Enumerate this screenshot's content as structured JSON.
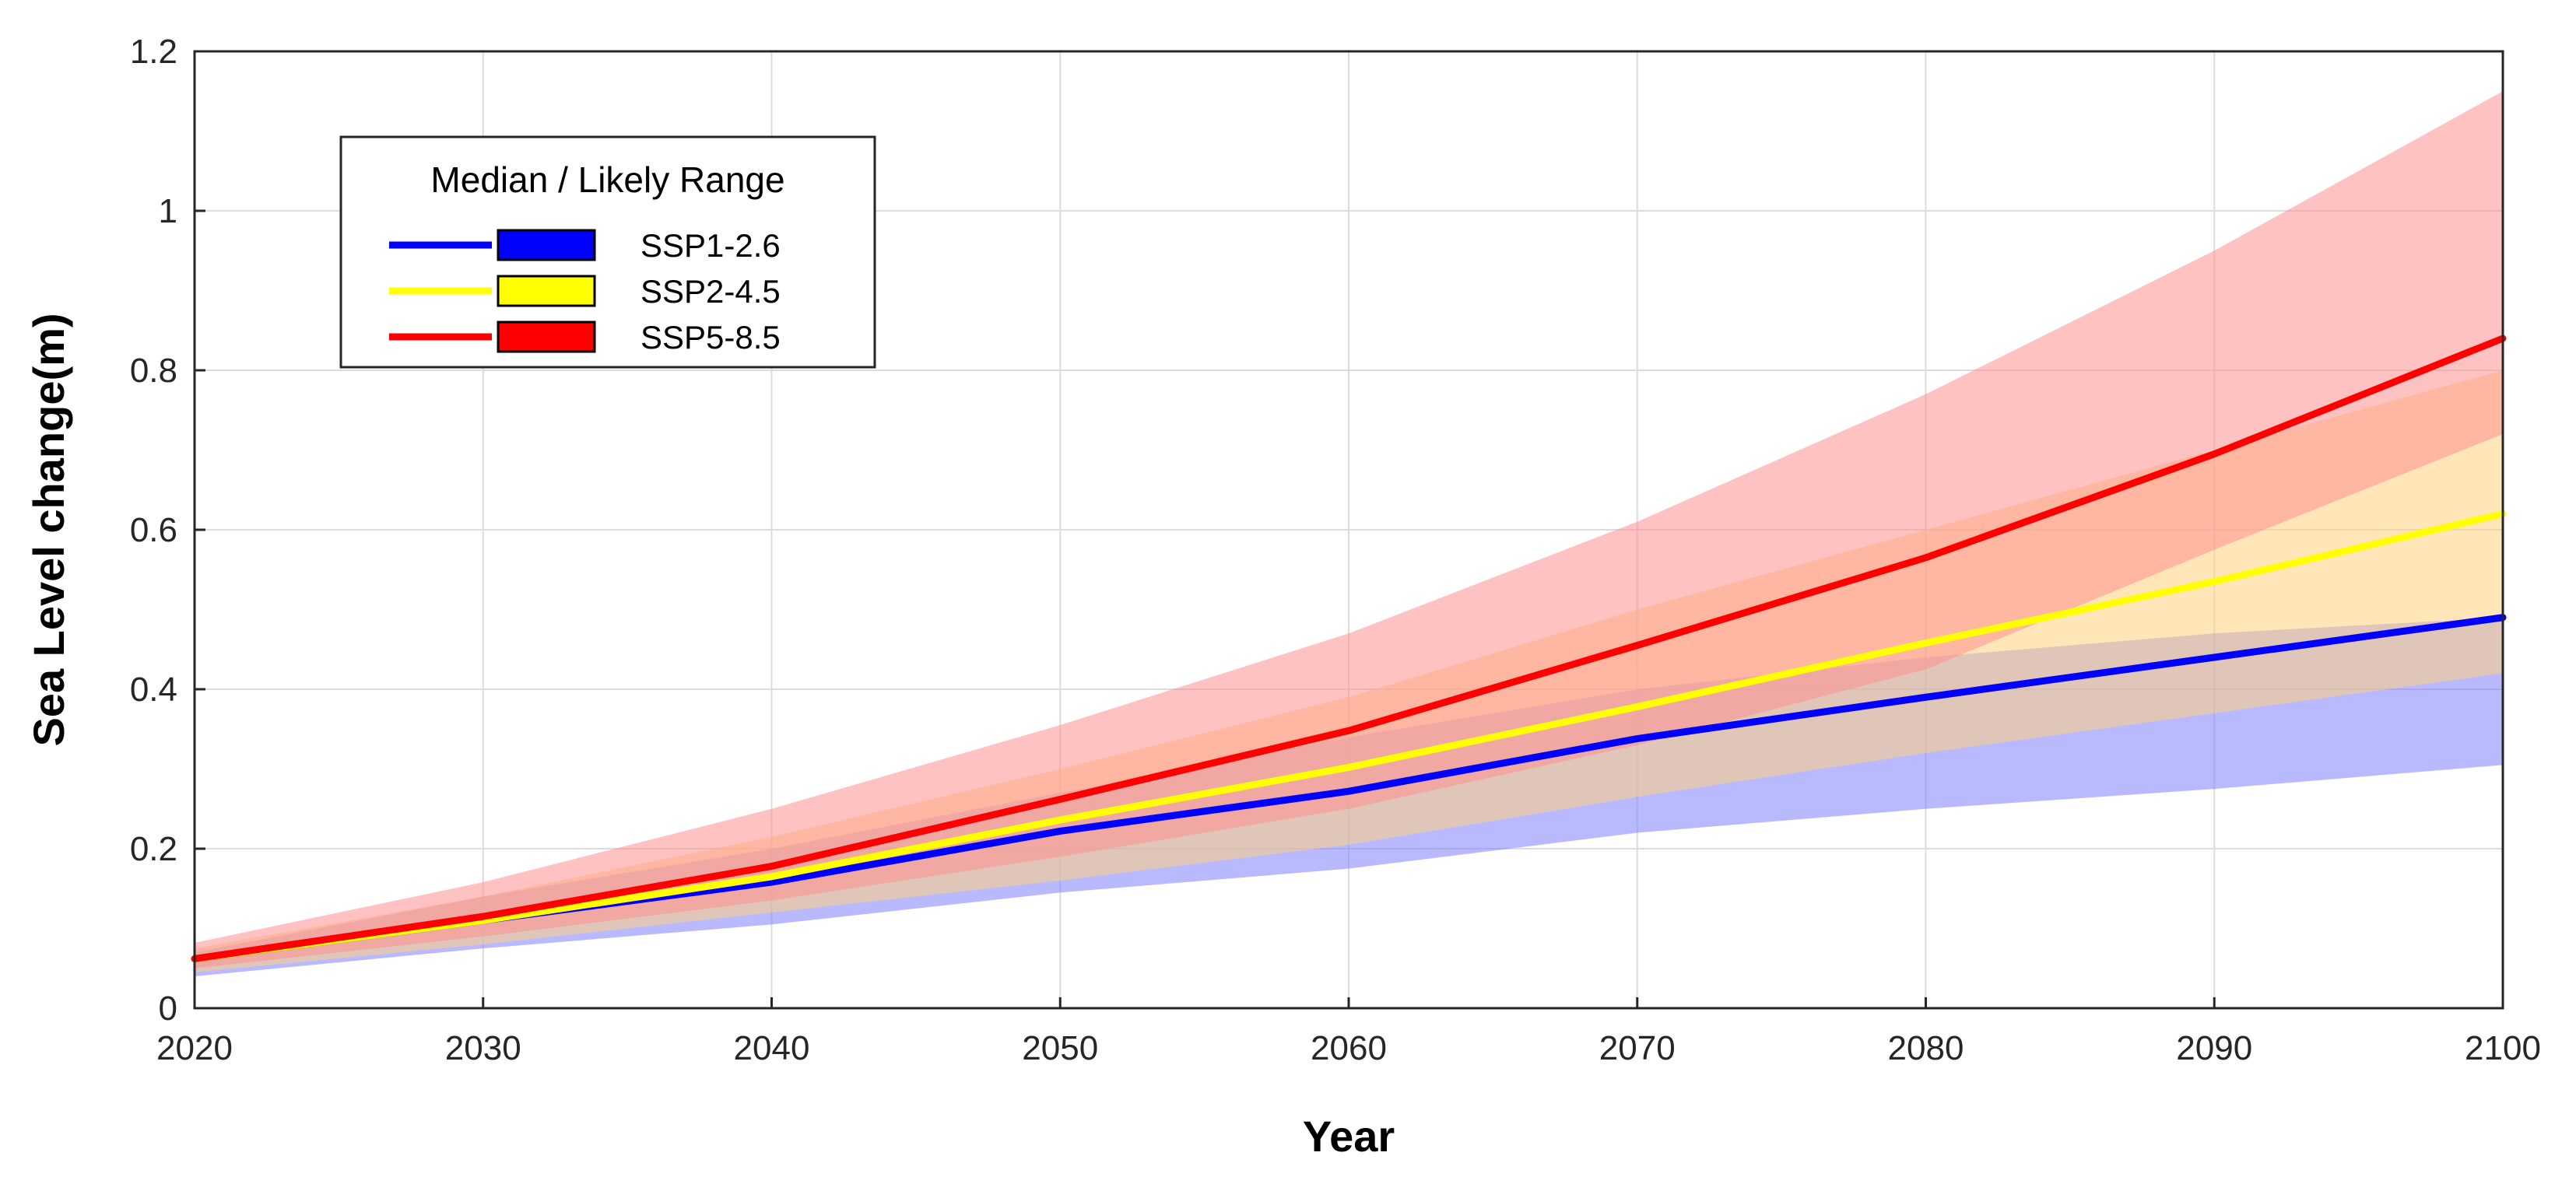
{
  "chart_data": {
    "type": "line",
    "title": "",
    "xlabel": "Year",
    "ylabel": "Sea Level change(m)",
    "xlim": [
      2020,
      2100
    ],
    "ylim": [
      0,
      1.2
    ],
    "grid": true,
    "x": [
      2020,
      2030,
      2040,
      2050,
      2060,
      2070,
      2080,
      2090,
      2100
    ],
    "xticks": [
      "2020",
      "2030",
      "2040",
      "2050",
      "2060",
      "2070",
      "2080",
      "2090",
      "2100"
    ],
    "yticks": [
      "0",
      "0.2",
      "0.4",
      "0.6",
      "0.8",
      "1",
      "1.2"
    ],
    "yticks_values": [
      0,
      0.2,
      0.4,
      0.6,
      0.8,
      1.0,
      1.2
    ],
    "legend": {
      "title": "Median / Likely Range",
      "position": "top-left"
    },
    "series": [
      {
        "name": "SSP1-2.6",
        "color": "#0000ff",
        "band_color": "#7f7fff",
        "median": [
          0.062,
          0.11,
          0.158,
          0.222,
          0.272,
          0.338,
          0.39,
          0.44,
          0.49
        ],
        "lower": [
          0.04,
          0.075,
          0.105,
          0.145,
          0.175,
          0.22,
          0.25,
          0.275,
          0.305
        ],
        "upper": [
          0.07,
          0.14,
          0.2,
          0.27,
          0.34,
          0.4,
          0.44,
          0.47,
          0.49
        ]
      },
      {
        "name": "SSP2-4.5",
        "color": "#ffff00",
        "band_color": "#ffd27f",
        "median": [
          0.062,
          0.11,
          0.165,
          0.236,
          0.302,
          0.378,
          0.458,
          0.535,
          0.62
        ],
        "lower": [
          0.045,
          0.08,
          0.12,
          0.16,
          0.205,
          0.265,
          0.32,
          0.37,
          0.42
        ],
        "upper": [
          0.075,
          0.14,
          0.215,
          0.3,
          0.39,
          0.5,
          0.6,
          0.7,
          0.8
        ]
      },
      {
        "name": "SSP5-8.5",
        "color": "#ff0000",
        "band_color": "#ff9090",
        "median": [
          0.062,
          0.115,
          0.178,
          0.262,
          0.348,
          0.455,
          0.565,
          0.695,
          0.84
        ],
        "lower": [
          0.05,
          0.09,
          0.135,
          0.19,
          0.25,
          0.33,
          0.425,
          0.575,
          0.72
        ],
        "upper": [
          0.082,
          0.158,
          0.25,
          0.355,
          0.47,
          0.61,
          0.77,
          0.95,
          1.15
        ]
      }
    ]
  }
}
